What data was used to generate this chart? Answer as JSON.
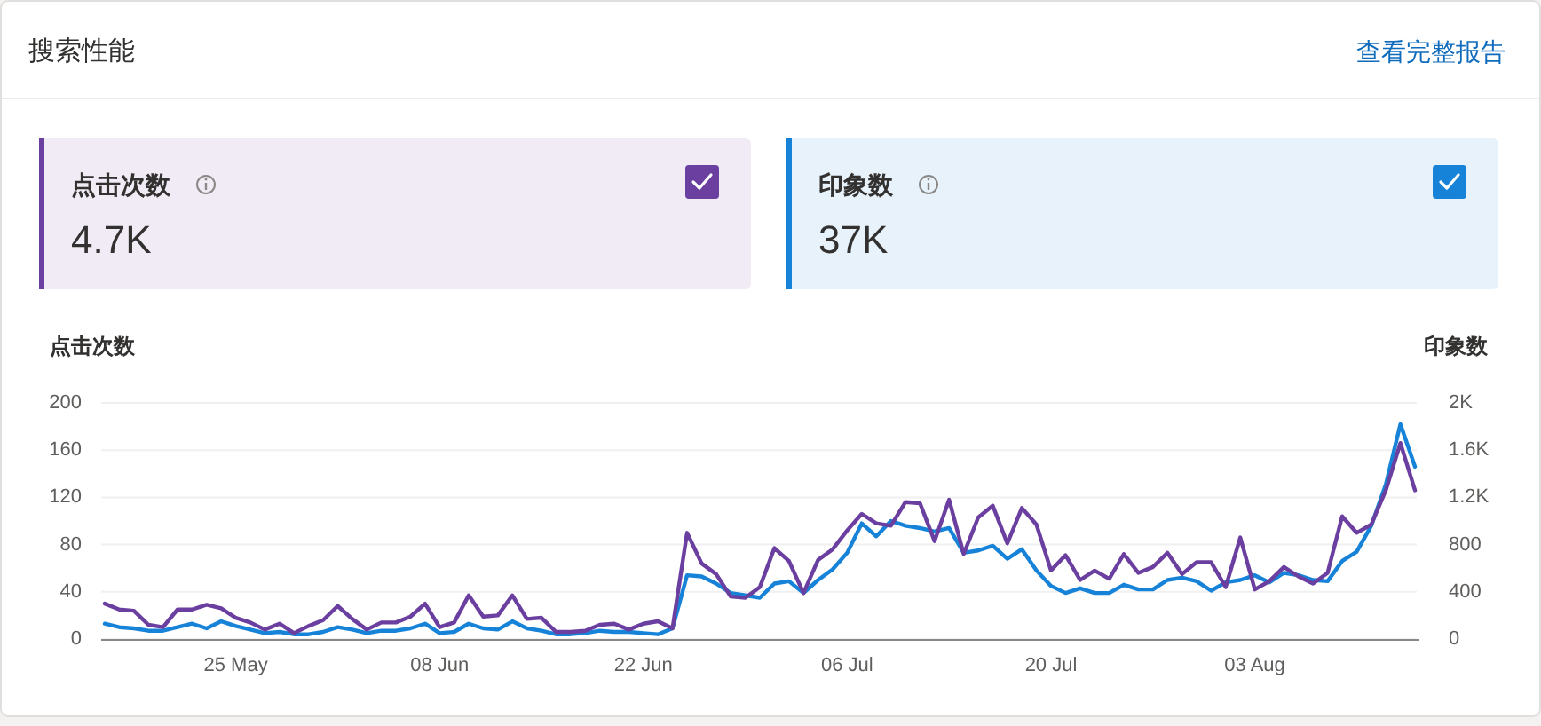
{
  "chart_data": [
    {
      "type": "other",
      "title": "搜索性能",
      "annotations": [
        "查看完整报告",
        "点击次数",
        "4.7K",
        "印象数",
        "37K"
      ],
      "colors": [
        "#6b3fa0",
        "#1683d8"
      ]
    },
    {
      "type": "line",
      "ylabel": "点击次数",
      "y2label": "印象数",
      "x": [
        "--05-16",
        "--05-17",
        "--05-18",
        "--05-19",
        "--05-20",
        "--05-21",
        "--05-22",
        "--05-23",
        "--05-24",
        "--05-25",
        "--05-26",
        "--05-27",
        "--05-28",
        "--05-29",
        "--05-30",
        "--05-31",
        "--06-01",
        "--06-02",
        "--06-03",
        "--06-04",
        "--06-05",
        "--06-06",
        "--06-07",
        "--06-08",
        "--06-09",
        "--06-10",
        "--06-11",
        "--06-12",
        "--06-13",
        "--06-14",
        "--06-15",
        "--06-16",
        "--06-17",
        "--06-18",
        "--06-19",
        "--06-20",
        "--06-21",
        "--06-22",
        "--06-23",
        "--06-24",
        "--06-25",
        "--06-26",
        "--06-27",
        "--06-28",
        "--06-29",
        "--06-30",
        "--07-01",
        "--07-02",
        "--07-03",
        "--07-04",
        "--07-05",
        "--07-06",
        "--07-07",
        "--07-08",
        "--07-09",
        "--07-10",
        "--07-11",
        "--07-12",
        "--07-13",
        "--07-14",
        "--07-15",
        "--07-16",
        "--07-17",
        "--07-18",
        "--07-19",
        "--07-20",
        "--07-21",
        "--07-22",
        "--07-23",
        "--07-24",
        "--07-25",
        "--07-26",
        "--07-27",
        "--07-28",
        "--07-29",
        "--07-30",
        "--07-31",
        "--08-01",
        "--08-02",
        "--08-03",
        "--08-04",
        "--08-05",
        "--08-06",
        "--08-07",
        "--08-08",
        "--08-09",
        "--08-10",
        "--08-11",
        "--08-12",
        "--08-13",
        "--08-14"
      ],
      "xlim": [
        "--05-16",
        "--08-14"
      ],
      "xticks": [
        {
          "value": "--05-25",
          "label": "25 May"
        },
        {
          "value": "--06-08",
          "label": "08 Jun"
        },
        {
          "value": "--06-22",
          "label": "22 Jun"
        },
        {
          "value": "--07-06",
          "label": "06 Jul"
        },
        {
          "value": "--07-20",
          "label": "20 Jul"
        },
        {
          "value": "--08-03",
          "label": "03 Aug"
        }
      ],
      "ylim": [
        0,
        200
      ],
      "yticks": [
        0,
        40,
        80,
        120,
        160,
        200
      ],
      "y2lim": [
        0,
        2000
      ],
      "y2ticks": [
        0,
        400,
        800,
        {
          "value": 1200,
          "label": "1.2K"
        },
        {
          "value": 1600,
          "label": "1.6K"
        },
        {
          "value": 2000,
          "label": "2K"
        }
      ],
      "grid": "y",
      "series": [
        {
          "color": "#6b3fa0",
          "values": [
            30,
            25,
            24,
            12,
            10,
            25,
            25,
            29,
            26,
            18,
            14,
            8,
            13,
            5,
            11,
            16,
            28,
            17,
            8,
            14,
            14,
            19,
            30,
            10,
            14,
            37,
            19,
            20,
            37,
            17,
            18,
            6,
            6,
            7,
            12,
            13,
            8,
            13,
            15,
            9,
            90,
            64,
            55,
            36,
            35,
            44,
            77,
            66,
            39,
            67,
            76,
            92,
            106,
            98,
            96,
            116,
            115,
            83,
            118,
            72,
            103,
            113,
            81,
            111,
            97,
            58,
            71,
            50,
            58,
            51,
            72,
            56,
            61,
            73,
            55,
            65,
            65,
            44,
            86,
            42,
            49,
            61,
            53,
            47,
            56,
            104,
            90,
            97,
            126,
            166,
            126
          ]
        },
        {
          "color": "#1683d8",
          "axis": "y2",
          "values": [
            130,
            100,
            90,
            70,
            70,
            100,
            130,
            90,
            150,
            110,
            80,
            50,
            60,
            40,
            40,
            60,
            100,
            80,
            50,
            70,
            70,
            90,
            130,
            50,
            60,
            130,
            90,
            80,
            150,
            90,
            70,
            40,
            40,
            50,
            70,
            60,
            60,
            50,
            40,
            90,
            540,
            530,
            470,
            390,
            370,
            350,
            470,
            490,
            390,
            500,
            590,
            730,
            980,
            870,
            1000,
            960,
            940,
            910,
            940,
            730,
            750,
            790,
            680,
            760,
            580,
            450,
            390,
            430,
            390,
            390,
            460,
            420,
            420,
            500,
            520,
            490,
            410,
            480,
            500,
            540,
            480,
            560,
            540,
            500,
            490,
            660,
            740,
            960,
            1310,
            1820,
            1460
          ]
        }
      ]
    }
  ]
}
